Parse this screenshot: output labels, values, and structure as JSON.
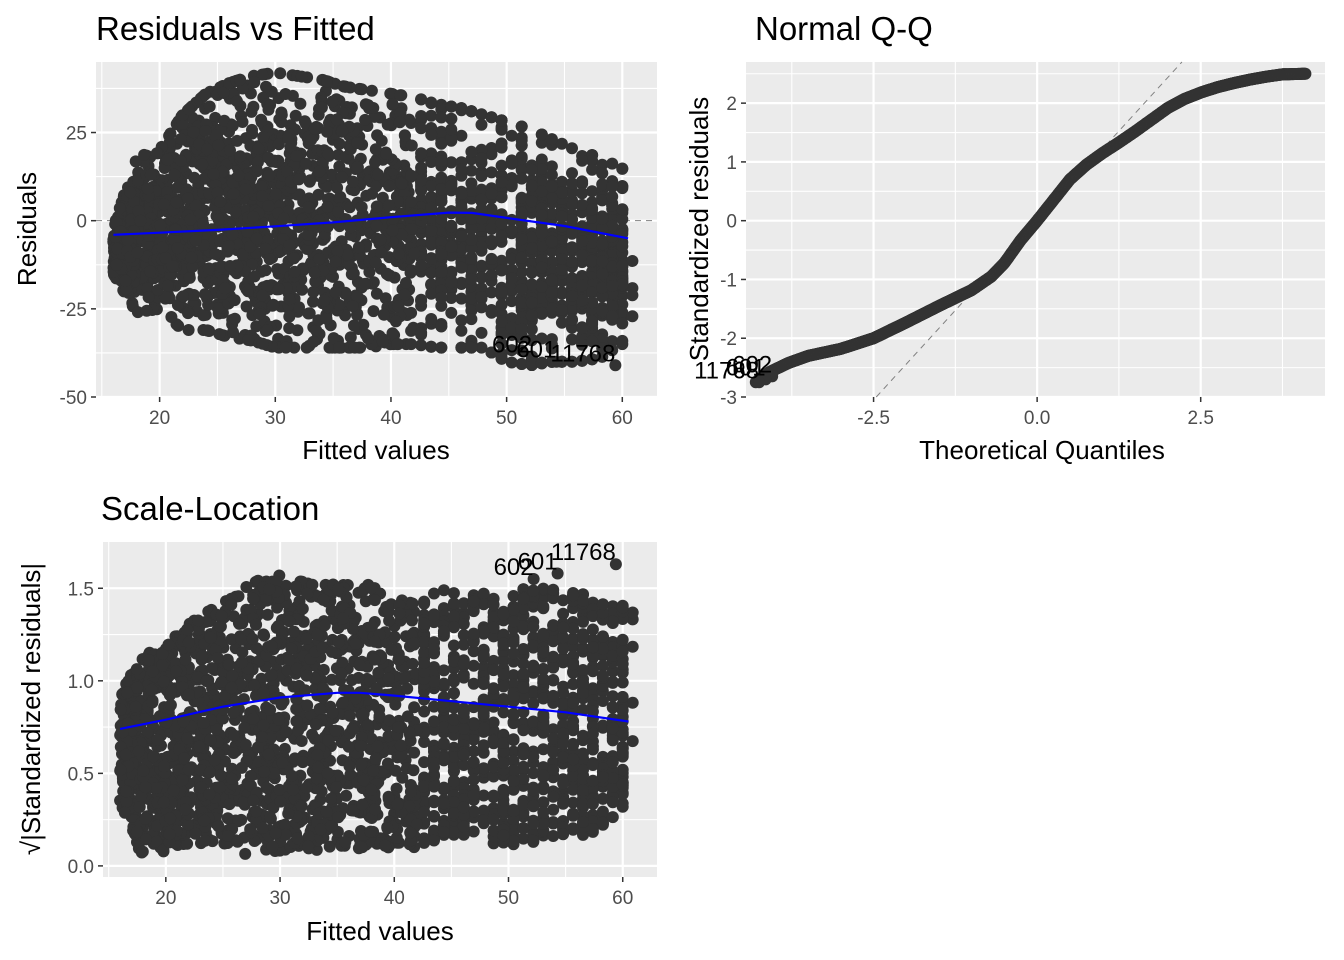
{
  "colors": {
    "panel_background": "#ebebeb",
    "grid_major": "#ffffff",
    "points": "#333333",
    "smooth_line": "#0000ff",
    "reference_line": "#808080",
    "tick_label": "#4d4d4d"
  },
  "chart_data": [
    {
      "id": "residuals-vs-fitted",
      "type": "scatter",
      "title": "Residuals vs Fitted",
      "xlabel": "Fitted values",
      "ylabel": "Residuals",
      "xlim": [
        14.5,
        63
      ],
      "ylim": [
        -50,
        45
      ],
      "xticks": [
        20,
        30,
        40,
        50,
        60
      ],
      "yticks": [
        -50,
        -25,
        0,
        25
      ],
      "ytick_labels": [
        "-50",
        "-25",
        "0",
        "25"
      ],
      "grid": true,
      "reference_line": {
        "type": "horizontal",
        "y": 0,
        "style": "dashed"
      },
      "smooth": {
        "x": [
          16,
          20,
          25,
          30,
          35,
          40,
          45,
          47,
          50,
          55,
          60.5
        ],
        "y": [
          -4,
          -3.4,
          -2.6,
          -1.6,
          -0.5,
          1,
          2.3,
          2.2,
          0.8,
          -1.5,
          -5
        ]
      },
      "point_cloud": {
        "x_range": [
          16,
          60.5
        ],
        "upper_envelope": {
          "x": [
            16,
            18,
            20,
            22,
            24,
            26,
            28,
            30,
            32,
            34,
            36,
            38,
            40,
            42,
            44,
            46,
            48,
            50,
            52,
            54,
            56,
            58,
            60.5
          ],
          "y": [
            -2,
            18,
            20,
            30,
            36,
            39,
            41,
            42,
            41,
            40,
            38,
            37,
            36,
            35,
            33,
            32,
            30,
            28,
            26,
            23,
            20,
            18,
            14
          ]
        },
        "lower_envelope": {
          "x": [
            16,
            18,
            20,
            22,
            24,
            26,
            28,
            30,
            32,
            34,
            36,
            38,
            40,
            42,
            44,
            46,
            48,
            50,
            52,
            54,
            56,
            58,
            60.5
          ],
          "y": [
            -15,
            -26,
            -25,
            -31,
            -31,
            -33,
            -34,
            -36,
            -36,
            -36,
            -36,
            -36,
            -35,
            -35,
            -36,
            -36,
            -36,
            -40,
            -41,
            -40,
            -40,
            -39,
            -35
          ]
        }
      },
      "labeled_points": [
        {
          "label": "602",
          "x": 52.2,
          "y": -38.5
        },
        {
          "label": "601",
          "x": 54.3,
          "y": -40
        },
        {
          "label": "11768",
          "x": 59.4,
          "y": -41
        }
      ]
    },
    {
      "id": "normal-qq",
      "type": "scatter",
      "title": "Normal Q-Q",
      "xlabel": "Theoretical Quantiles",
      "ylabel": "Standardized residuals",
      "xlim": [
        -4.45,
        4.4
      ],
      "ylim": [
        -3,
        2.7
      ],
      "xticks": [
        -2.5,
        0,
        2.5
      ],
      "xtick_labels": [
        "-2.5",
        "0.0",
        "2.5"
      ],
      "yticks": [
        -3,
        -2,
        -1,
        0,
        1,
        2
      ],
      "ytick_labels": [
        "-3",
        "-2",
        "-1",
        "0",
        "1",
        "2"
      ],
      "grid": true,
      "reference_line": {
        "type": "diagonal",
        "slope": 1.22,
        "intercept": 0,
        "style": "dashed"
      },
      "qq_curve": {
        "x": [
          -4.3,
          -4.1,
          -3.8,
          -3.5,
          -3.0,
          -2.5,
          -2.0,
          -1.5,
          -1.0,
          -0.7,
          -0.5,
          -0.25,
          0,
          0.25,
          0.5,
          0.75,
          1.0,
          1.25,
          1.5,
          1.75,
          2.0,
          2.25,
          2.5,
          2.75,
          3.0,
          3.25,
          3.5,
          3.75,
          4.1
        ],
        "y": [
          -2.75,
          -2.58,
          -2.42,
          -2.3,
          -2.18,
          -2.0,
          -1.73,
          -1.45,
          -1.18,
          -0.95,
          -0.72,
          -0.33,
          0,
          0.35,
          0.7,
          0.95,
          1.15,
          1.33,
          1.52,
          1.72,
          1.92,
          2.07,
          2.18,
          2.27,
          2.34,
          2.4,
          2.45,
          2.49,
          2.5
        ]
      },
      "labeled_points": [
        {
          "label": "602",
          "x": -4.05,
          "y": -2.65
        },
        {
          "label": "601",
          "x": -4.15,
          "y": -2.7
        },
        {
          "label": "11768",
          "x": -4.25,
          "y": -2.75
        }
      ]
    },
    {
      "id": "scale-location",
      "type": "scatter",
      "title": "Scale-Location",
      "xlabel": "Fitted values",
      "ylabel": "√|Standardized residuals|",
      "xlim": [
        14.5,
        63
      ],
      "ylim": [
        -0.06,
        1.75
      ],
      "xticks": [
        20,
        30,
        40,
        50,
        60
      ],
      "yticks": [
        0,
        0.5,
        1,
        1.5
      ],
      "ytick_labels": [
        "0.0",
        "0.5",
        "1.0",
        "1.5"
      ],
      "grid": true,
      "smooth": {
        "x": [
          16,
          20,
          25,
          30,
          35,
          37,
          40,
          45,
          50,
          55,
          60.5
        ],
        "y": [
          0.74,
          0.79,
          0.86,
          0.91,
          0.935,
          0.935,
          0.92,
          0.89,
          0.86,
          0.83,
          0.78
        ]
      },
      "point_cloud": {
        "x_range": [
          16,
          60.5
        ],
        "upper_envelope": {
          "x": [
            16,
            18,
            20,
            22,
            24,
            26,
            28,
            30,
            32,
            34,
            36,
            38,
            40,
            42,
            44,
            46,
            48,
            50,
            52,
            54,
            56,
            58,
            60.5
          ],
          "y": [
            0.95,
            1.15,
            1.2,
            1.32,
            1.4,
            1.47,
            1.54,
            1.57,
            1.56,
            1.54,
            1.53,
            1.52,
            1.51,
            1.5,
            1.49,
            1.49,
            1.47,
            1.5,
            1.51,
            1.5,
            1.48,
            1.46,
            1.4
          ]
        },
        "lower_envelope": {
          "x": [
            16,
            18,
            20,
            22,
            24,
            26,
            28,
            30,
            32,
            34,
            36,
            38,
            40,
            42,
            44,
            46,
            48,
            50,
            52,
            54,
            56,
            58,
            60.5
          ],
          "y": [
            0.34,
            0.03,
            0.08,
            0.1,
            0.1,
            0.06,
            0.07,
            0.08,
            0.08,
            0.08,
            0.08,
            0.09,
            0.09,
            0.09,
            0.1,
            0.11,
            0.1,
            0.11,
            0.12,
            0.14,
            0.16,
            0.17,
            0.3
          ]
        }
      },
      "labeled_points": [
        {
          "label": "602",
          "x": 52.2,
          "y": 1.55
        },
        {
          "label": "601",
          "x": 54.3,
          "y": 1.58
        },
        {
          "label": "11768",
          "x": 59.4,
          "y": 1.63
        }
      ]
    }
  ]
}
